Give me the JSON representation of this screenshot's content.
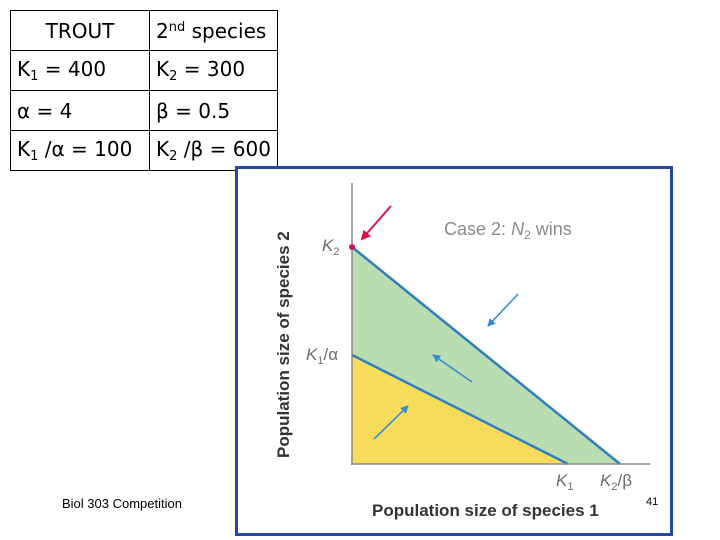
{
  "table": {
    "row1": {
      "left": "TROUT",
      "right_num": "2",
      "right_sup": "nd",
      "right_rest": " species"
    },
    "row2": {
      "left_k": "K",
      "left_sub": "1",
      "left_rest": " = 400",
      "right_k": "K",
      "right_sub": "2",
      "right_rest": " = 300"
    },
    "row3": {
      "left": "α = 4",
      "right": "β = 0.5"
    },
    "row4": {
      "left_k": "K",
      "left_sub": "1",
      "left_rest": " /α = 100",
      "right_k": "K",
      "right_sub": "2",
      "right_rest": " /β = 600"
    }
  },
  "figure": {
    "case_label": "Case 2:",
    "case_n": "N",
    "case_n_sub": "2",
    "case_wins": " wins",
    "y_axis_label": "Population size of species 2",
    "x_axis_label": "Population size of species 1",
    "y_tick_k2": "K",
    "y_tick_k2_sub": "2",
    "y_tick_k1a": "K",
    "y_tick_k1a_sub": "1",
    "y_tick_k1a_rest": "/α",
    "x_tick_k1": "K",
    "x_tick_k1_sub": "1",
    "x_tick_k2b": "K",
    "x_tick_k2b_sub": "2",
    "x_tick_k2b_rest": "/β",
    "colors": {
      "species1_region": "#f6dc5a",
      "species2_region": "#b9dcb0",
      "isocline": "#2e7fc0",
      "arrow": "#2e8ccf",
      "highlight_arrow": "#d4144a",
      "frame": "#2447a8"
    }
  },
  "footer": {
    "course": "Biol 303 Competition",
    "slide_number": "41"
  }
}
